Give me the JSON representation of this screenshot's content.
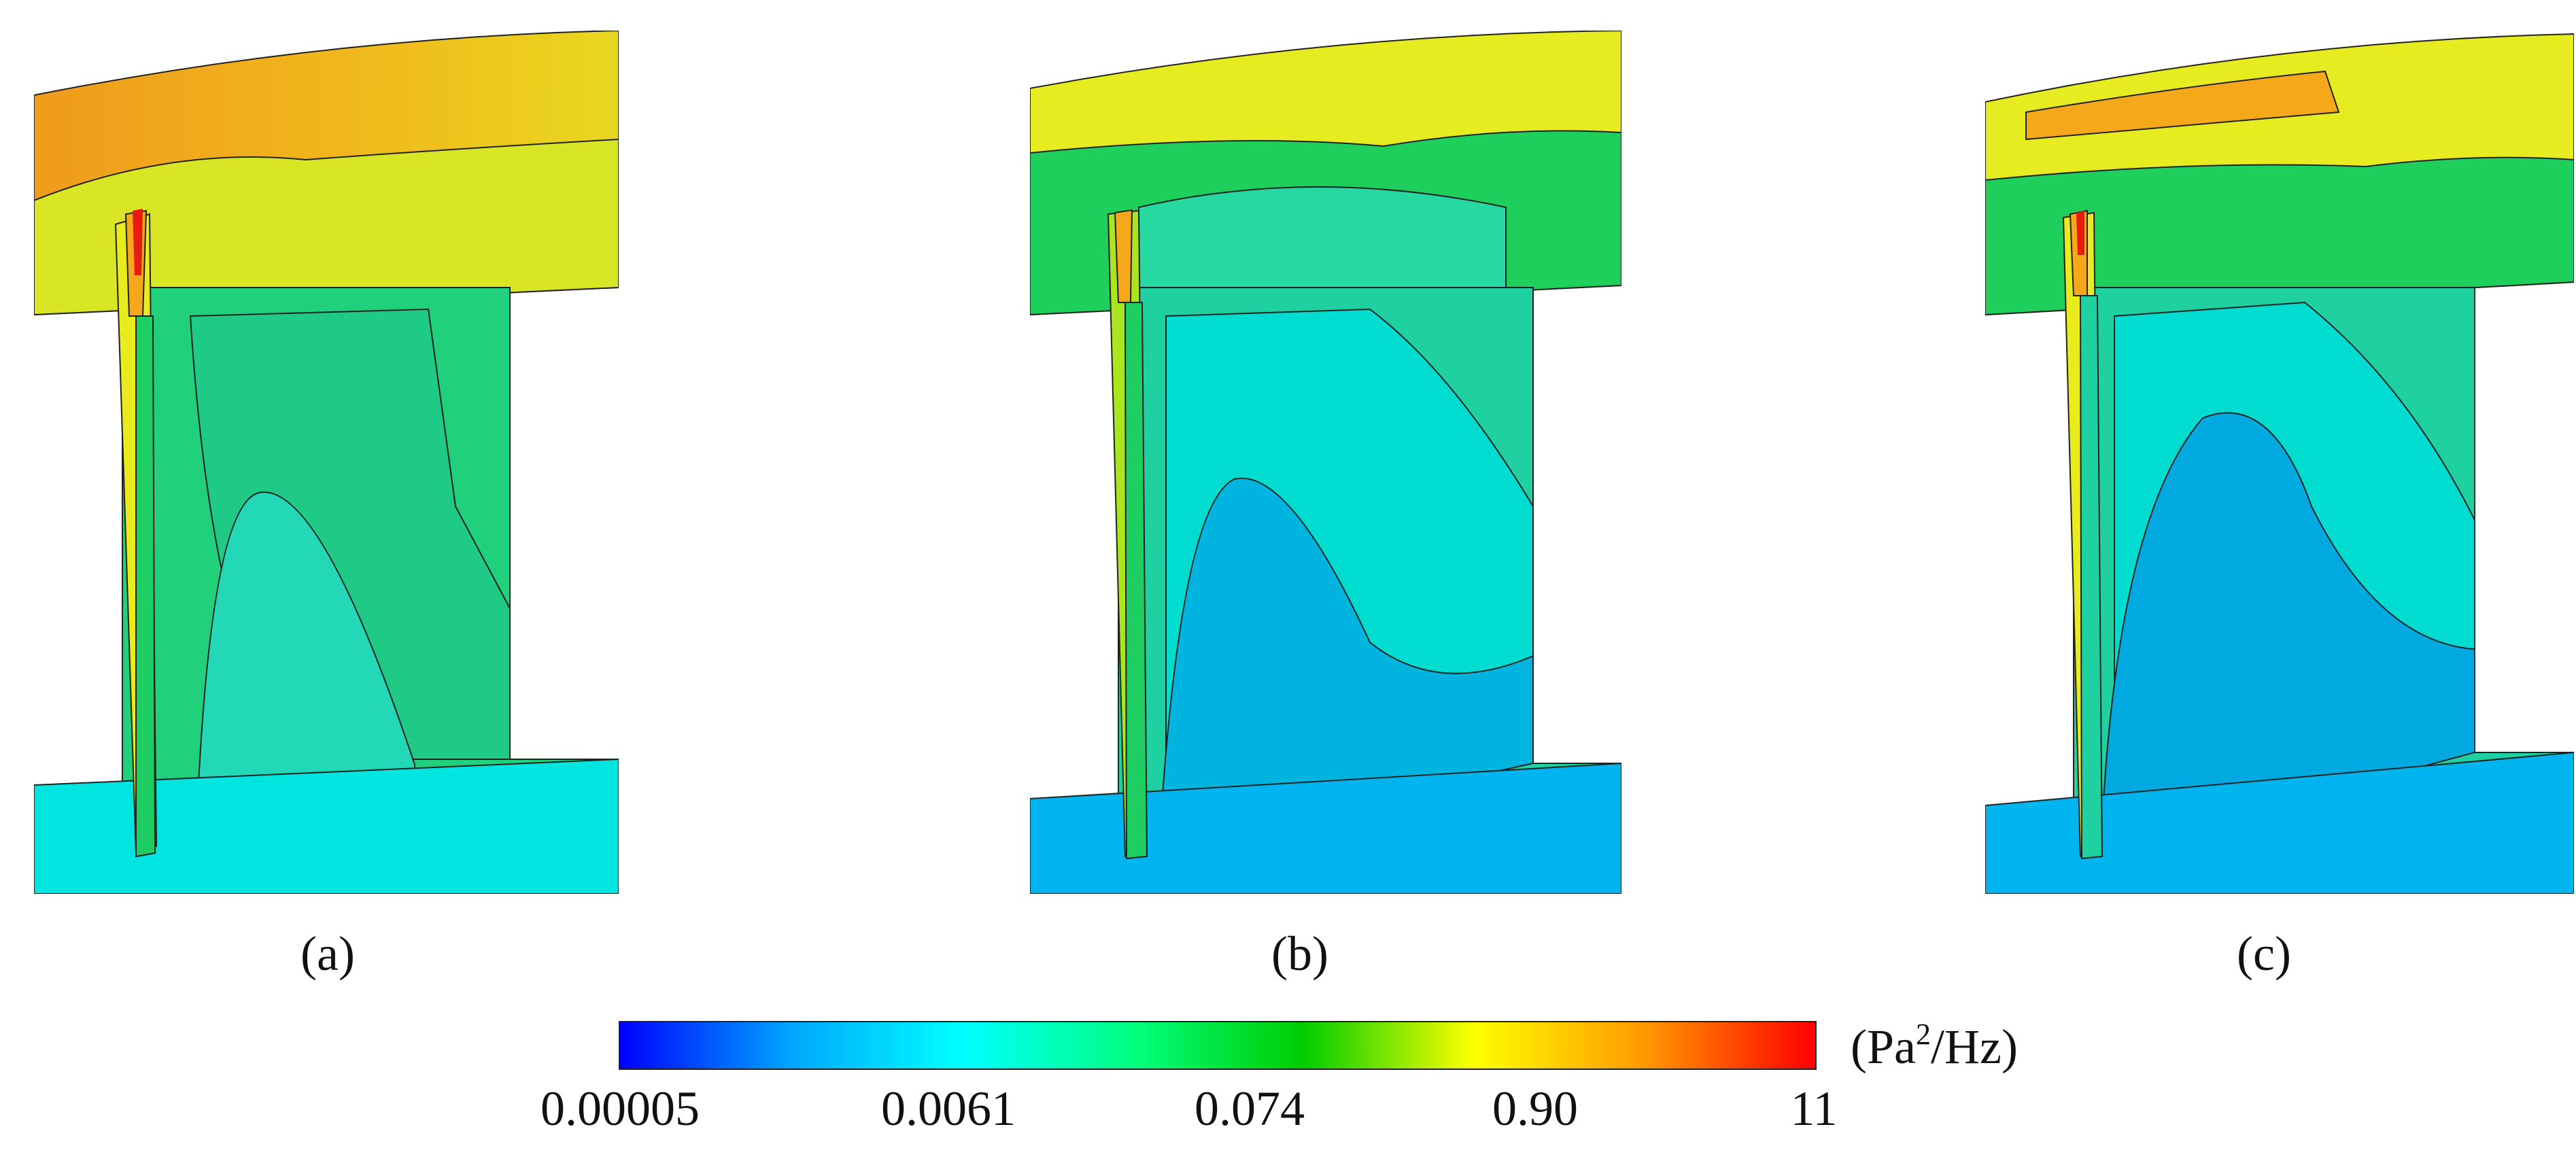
{
  "panels": [
    {
      "label": "(a)"
    },
    {
      "label": "(b)"
    },
    {
      "label": "(c)"
    }
  ],
  "colorbar": {
    "unit_prefix": "(Pa",
    "unit_sup": "2",
    "unit_suffix": "/Hz)",
    "ticks": [
      "0.00005",
      "0.0061",
      "0.074",
      "0.90",
      "11"
    ],
    "gradient": [
      "#0000ff",
      "#00a6ff",
      "#00ffff",
      "#00ff80",
      "#00cc00",
      "#ffff00",
      "#ff9900",
      "#ff0000"
    ]
  },
  "colors": {
    "blue": "#00b4ef",
    "cyan": "#00e5e0",
    "teal": "#1fd8b4",
    "green": "#1ece62",
    "lime": "#a9e620",
    "yellow": "#e9ec1c",
    "orange": "#f5a91a",
    "red": "#e81b10"
  }
}
